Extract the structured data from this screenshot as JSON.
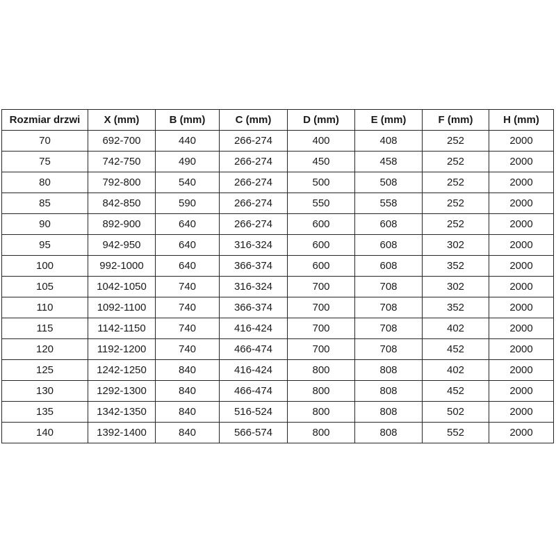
{
  "colors": {
    "background": "#ffffff",
    "border": "#262626",
    "text": "#1a1a1a"
  },
  "chart_data": {
    "type": "table",
    "columns": [
      "Rozmiar drzwi",
      "X (mm)",
      "B (mm)",
      "C (mm)",
      "D (mm)",
      "E (mm)",
      "F (mm)",
      "H (mm)"
    ],
    "rows": [
      [
        "70",
        "692-700",
        "440",
        "266-274",
        "400",
        "408",
        "252",
        "2000"
      ],
      [
        "75",
        "742-750",
        "490",
        "266-274",
        "450",
        "458",
        "252",
        "2000"
      ],
      [
        "80",
        "792-800",
        "540",
        "266-274",
        "500",
        "508",
        "252",
        "2000"
      ],
      [
        "85",
        "842-850",
        "590",
        "266-274",
        "550",
        "558",
        "252",
        "2000"
      ],
      [
        "90",
        "892-900",
        "640",
        "266-274",
        "600",
        "608",
        "252",
        "2000"
      ],
      [
        "95",
        "942-950",
        "640",
        "316-324",
        "600",
        "608",
        "302",
        "2000"
      ],
      [
        "100",
        "992-1000",
        "640",
        "366-374",
        "600",
        "608",
        "352",
        "2000"
      ],
      [
        "105",
        "1042-1050",
        "740",
        "316-324",
        "700",
        "708",
        "302",
        "2000"
      ],
      [
        "110",
        "1092-1100",
        "740",
        "366-374",
        "700",
        "708",
        "352",
        "2000"
      ],
      [
        "115",
        "1142-1150",
        "740",
        "416-424",
        "700",
        "708",
        "402",
        "2000"
      ],
      [
        "120",
        "1192-1200",
        "740",
        "466-474",
        "700",
        "708",
        "452",
        "2000"
      ],
      [
        "125",
        "1242-1250",
        "840",
        "416-424",
        "800",
        "808",
        "402",
        "2000"
      ],
      [
        "130",
        "1292-1300",
        "840",
        "466-474",
        "800",
        "808",
        "452",
        "2000"
      ],
      [
        "135",
        "1342-1350",
        "840",
        "516-524",
        "800",
        "808",
        "502",
        "2000"
      ],
      [
        "140",
        "1392-1400",
        "840",
        "566-574",
        "800",
        "808",
        "552",
        "2000"
      ]
    ]
  }
}
